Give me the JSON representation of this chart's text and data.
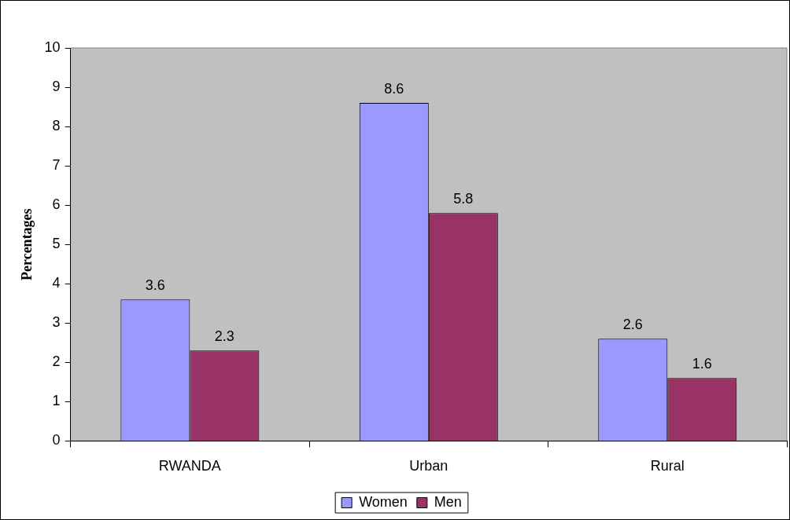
{
  "chart_data": {
    "type": "bar",
    "ylabel": "Percentages",
    "categories": [
      "RWANDA",
      "Urban",
      "Rural"
    ],
    "series": [
      {
        "name": "Women",
        "color": "#9999ff",
        "values": [
          3.6,
          8.6,
          2.6
        ]
      },
      {
        "name": "Men",
        "color": "#993366",
        "values": [
          2.3,
          5.8,
          1.6
        ]
      }
    ],
    "ylim": [
      0,
      10
    ],
    "yticks": [
      0,
      1,
      2,
      3,
      4,
      5,
      6,
      7,
      8,
      9,
      10
    ],
    "grid": false,
    "legend": "bottom",
    "data_labels": true
  }
}
